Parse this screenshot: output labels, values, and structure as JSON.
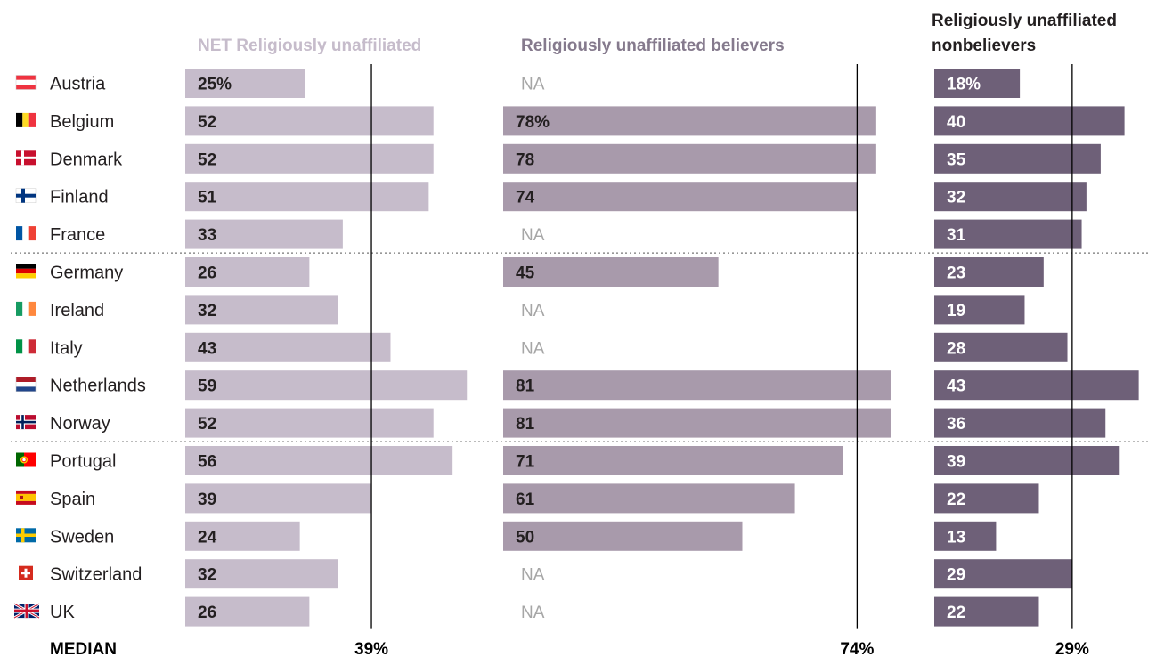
{
  "chart_data": {
    "type": "bar",
    "categories": [
      "Austria",
      "Belgium",
      "Denmark",
      "Finland",
      "France",
      "Germany",
      "Ireland",
      "Italy",
      "Netherlands",
      "Norway",
      "Portugal",
      "Spain",
      "Sweden",
      "Switzerland",
      "UK"
    ],
    "series": [
      {
        "name": "NET Religiously unaffiliated",
        "values": [
          25,
          52,
          52,
          51,
          33,
          26,
          32,
          43,
          59,
          52,
          56,
          39,
          24,
          32,
          26
        ],
        "labels": [
          "25%",
          "52",
          "52",
          "51",
          "33",
          "26",
          "32",
          "43",
          "59",
          "52",
          "56",
          "39",
          "24",
          "32",
          "26"
        ],
        "median": 39,
        "median_label": "39%",
        "color": "#c6bccb",
        "label_color": "#231f20"
      },
      {
        "name": "Religiously unaffiliated believers",
        "values": [
          null,
          78,
          78,
          74,
          null,
          45,
          null,
          null,
          81,
          81,
          71,
          61,
          50,
          null,
          null
        ],
        "labels": [
          "NA",
          "78%",
          "78",
          "74",
          "NA",
          "45",
          "NA",
          "NA",
          "81",
          "81",
          "71",
          "61",
          "50",
          "NA",
          "NA"
        ],
        "median": 74,
        "median_label": "74%",
        "color": "#a89aab",
        "label_color": "#231f20"
      },
      {
        "name": "Religiously unaffiliated nonbelievers",
        "values": [
          18,
          40,
          35,
          32,
          31,
          23,
          19,
          28,
          43,
          36,
          39,
          22,
          13,
          29,
          22
        ],
        "labels": [
          "18%",
          "40",
          "35",
          "32",
          "31",
          "23",
          "19",
          "28",
          "43",
          "36",
          "39",
          "22",
          "13",
          "29",
          "22"
        ],
        "median": 29,
        "median_label": "29%",
        "color": "#6e6078",
        "label_color": "#ffffff"
      }
    ],
    "median_row_label": "MEDIAN",
    "na_color": "#a6a6a6",
    "group_separators_after": [
      "France",
      "Norway"
    ],
    "flag_icons": [
      "austria-flag-icon",
      "belgium-flag-icon",
      "denmark-flag-icon",
      "finland-flag-icon",
      "france-flag-icon",
      "germany-flag-icon",
      "ireland-flag-icon",
      "italy-flag-icon",
      "netherlands-flag-icon",
      "norway-flag-icon",
      "portugal-flag-icon",
      "spain-flag-icon",
      "sweden-flag-icon",
      "switzerland-flag-icon",
      "uk-flag-icon"
    ]
  }
}
